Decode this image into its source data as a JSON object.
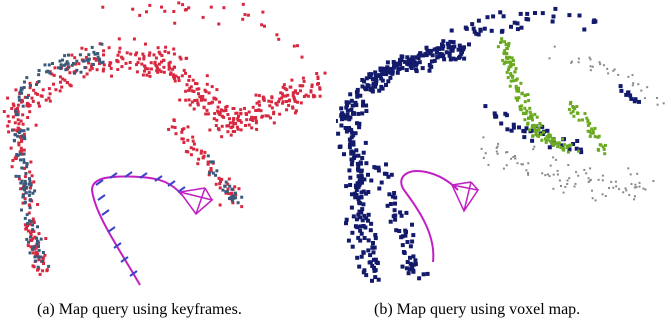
{
  "figure": {
    "subfigures": [
      {
        "id": "a",
        "caption": "(a) Map query using keyframes.",
        "point_colors": [
          "#d8283f",
          "#3a5a7c"
        ],
        "trajectory_color": "#c11fc4",
        "keyframe_marker_color": "#3e44c7",
        "points_icon": "point-cloud-icon",
        "trajectory_icon": "camera-trajectory-icon",
        "frustum_icon": "camera-frustum-icon"
      },
      {
        "id": "b",
        "caption": "(b) Map query using voxel map.",
        "point_colors": [
          "#131a6b",
          "#6aaa1f",
          "#888888"
        ],
        "trajectory_color": "#c11fc4",
        "points_icon": "voxel-point-cloud-icon",
        "trajectory_icon": "camera-trajectory-icon",
        "frustum_icon": "camera-frustum-icon"
      }
    ]
  }
}
